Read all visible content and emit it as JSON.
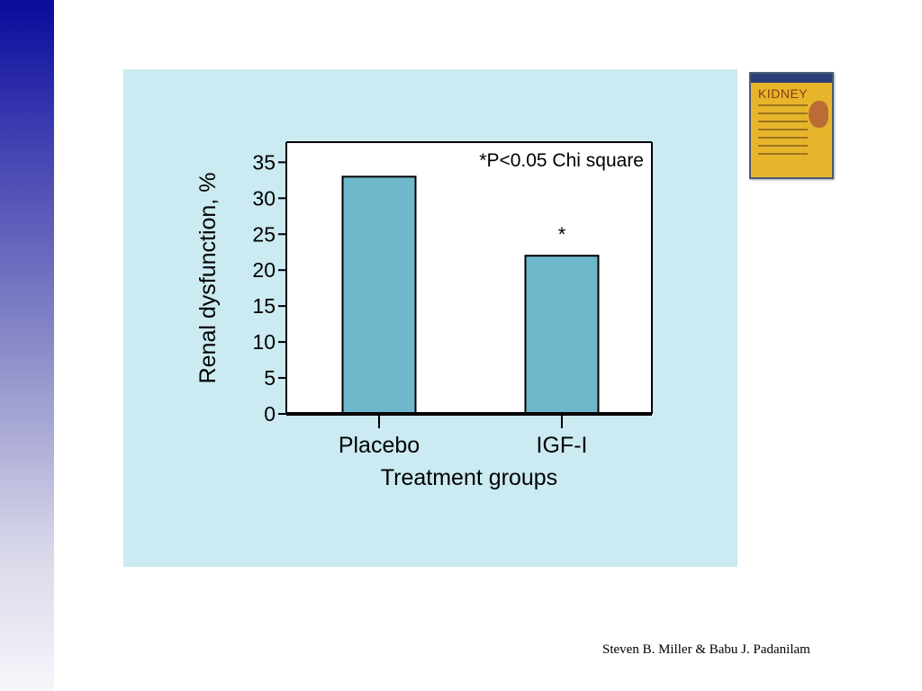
{
  "slide": {
    "credit": "Steven B. Miller & Babu J. Padanilam"
  },
  "book": {
    "title": "KIDNEY"
  },
  "chart_data": {
    "type": "bar",
    "categories": [
      "Placebo",
      "IGF-I"
    ],
    "values": [
      33,
      22
    ],
    "xlabel": "Treatment groups",
    "ylabel": "Renal dysfunction, %",
    "ylim": [
      0,
      35
    ],
    "yticks": [
      0,
      5,
      10,
      15,
      20,
      25,
      30,
      35
    ],
    "annotation": "*P<0.05 Chi square",
    "significance_markers": [
      "",
      "*"
    ],
    "grid": false,
    "colors": {
      "bar": "#6fb8cb",
      "plot_bg": "#ffffff",
      "panel_bg": "#cbeaf1"
    }
  }
}
